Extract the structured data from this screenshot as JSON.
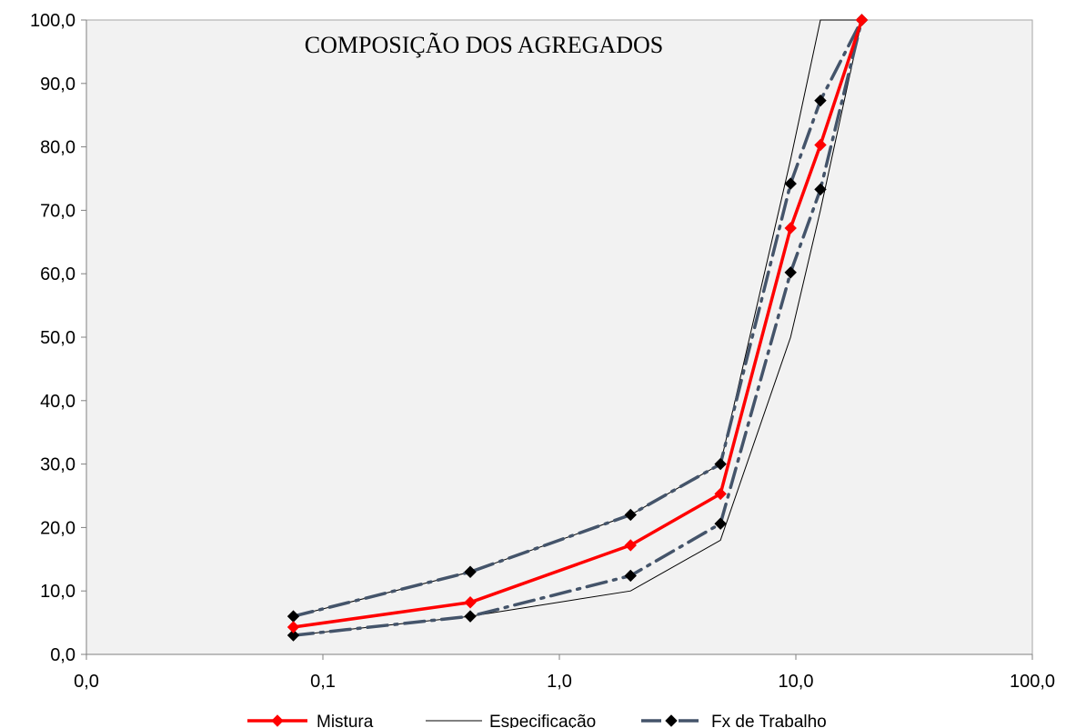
{
  "chart_data": {
    "type": "line",
    "title": "COMPOSIÇÃO DOS AGREGADOS",
    "x_scale": "log",
    "xlim": [
      0.01,
      100
    ],
    "ylim": [
      0,
      100
    ],
    "x_tick_values": [
      0.01,
      0.1,
      1,
      10,
      100
    ],
    "x_tick_labels": [
      "0,0",
      "0,1",
      "1,0",
      "10,0",
      "100,0"
    ],
    "y_tick_values": [
      0,
      10,
      20,
      30,
      40,
      50,
      60,
      70,
      80,
      90,
      100
    ],
    "y_tick_labels": [
      "0,0",
      "10,0",
      "20,0",
      "30,0",
      "40,0",
      "50,0",
      "60,0",
      "70,0",
      "80,0",
      "90,0",
      "100,0"
    ],
    "grid": false,
    "plot_background": "#f2f2f2",
    "legend_position": "bottom",
    "series": [
      {
        "name": "Mistura",
        "color": "#ff0000",
        "style": "solid-marker",
        "x": [
          0.075,
          0.42,
          2.0,
          4.8,
          9.5,
          12.7,
          19.0
        ],
        "y": [
          4.3,
          8.2,
          17.2,
          25.3,
          67.2,
          80.3,
          100.0
        ]
      },
      {
        "name": "Especificação",
        "color": "#000000",
        "style": "thin",
        "lines": [
          {
            "x": [
              0.075,
              0.42,
              2.0,
              4.8,
              9.5,
              12.7,
              19.0
            ],
            "y": [
              6.0,
              13.0,
              22.0,
              30.0,
              78.0,
              100.0,
              100.0
            ]
          },
          {
            "x": [
              0.075,
              0.42,
              2.0,
              4.8,
              9.5,
              12.7,
              19.0
            ],
            "y": [
              3.0,
              6.0,
              10.0,
              18.0,
              50.0,
              70.0,
              100.0
            ]
          }
        ]
      },
      {
        "name": "Fx de Trabalho",
        "color": "#44546a",
        "style": "dash-dot-marker",
        "lines": [
          {
            "x": [
              0.075,
              0.42,
              2.0,
              4.8,
              9.5,
              12.7,
              19.0
            ],
            "y": [
              6.0,
              13.0,
              22.0,
              30.0,
              74.2,
              87.3,
              100.0
            ]
          },
          {
            "x": [
              0.075,
              0.42,
              2.0,
              4.8,
              9.5,
              12.7,
              19.0
            ],
            "y": [
              3.0,
              6.0,
              12.4,
              20.6,
              60.2,
              73.3,
              100.0
            ]
          }
        ]
      }
    ]
  }
}
